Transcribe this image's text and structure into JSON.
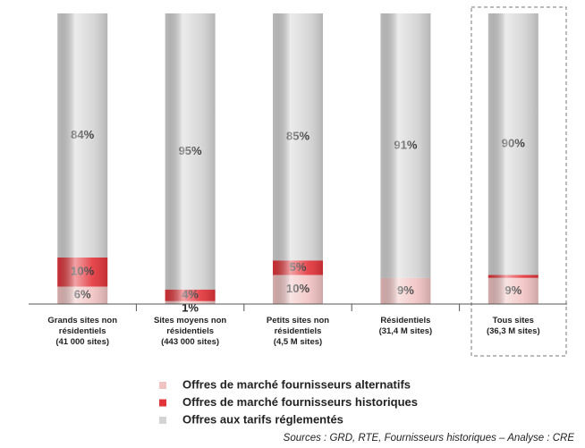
{
  "chart_data": {
    "type": "stacked_bar",
    "categories": [
      "Grands sites non\nrésidentiels\n(41 000 sites)",
      "Sites moyens non\nrésidentiels\n(443 000 sites)",
      "Petits sites non\nrésidentiels\n(4,5 M sites)",
      "Résidentiels\n(31,4 M sites)",
      "Tous sites\n(36,3 M sites)"
    ],
    "series": [
      {
        "name": "Offres de marché fournisseurs alternatifs",
        "color": "#f1c3c2",
        "values": [
          6,
          1,
          10,
          9,
          9
        ],
        "value_labels": [
          "6%",
          "1%",
          "10%",
          "9%",
          "9%"
        ]
      },
      {
        "name": "Offres de marché fournisseurs historiques",
        "color": "#e3343a",
        "values": [
          10,
          4,
          5,
          0,
          1
        ],
        "value_labels": [
          "10%",
          "4%",
          "5%",
          null,
          "1%"
        ]
      },
      {
        "name": "Offres aux tarifs réglementés",
        "color": "#d4d4d4",
        "values": [
          84,
          95,
          85,
          91,
          90
        ],
        "value_labels": [
          "84%",
          "95%",
          "85%",
          "91%",
          "90%"
        ]
      }
    ],
    "ylim": [
      0,
      100
    ],
    "source": "Sources : GRD, RTE, Fournisseurs historiques – Analyse : CRE"
  }
}
